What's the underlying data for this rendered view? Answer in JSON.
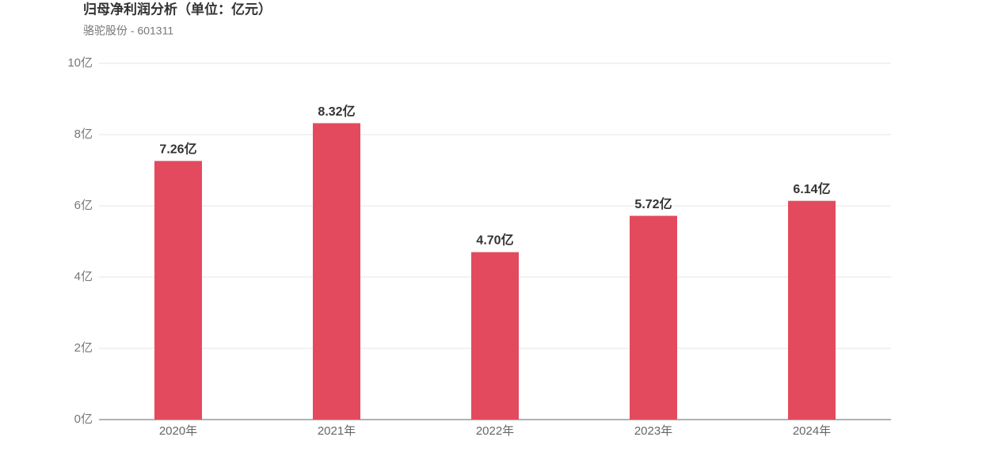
{
  "chart_data": {
    "type": "bar",
    "title": "归母净利润分析（单位：亿元）",
    "subtitle": "骆驼股份 - 601311",
    "categories": [
      "2020年",
      "2021年",
      "2022年",
      "2023年",
      "2024年"
    ],
    "values": [
      7.26,
      8.32,
      4.7,
      5.72,
      6.14
    ],
    "value_labels": [
      "7.26亿",
      "8.32亿",
      "4.70亿",
      "5.72亿",
      "6.14亿"
    ],
    "color": "#e34a5e",
    "ylim": [
      0,
      10
    ],
    "yticks": [
      {
        "value": 0,
        "label": "0亿"
      },
      {
        "value": 2,
        "label": "2亿"
      },
      {
        "value": 4,
        "label": "4亿"
      },
      {
        "value": 6,
        "label": "6亿"
      },
      {
        "value": 8,
        "label": "8亿"
      },
      {
        "value": 10,
        "label": "10亿"
      }
    ],
    "grid": true
  }
}
